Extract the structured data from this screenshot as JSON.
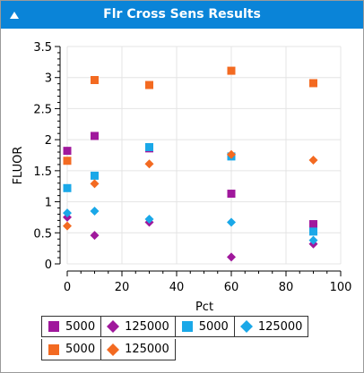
{
  "window": {
    "title": "Flr Cross Sens Results",
    "collapse_icon": "triangle-up-icon",
    "titlebar_color": "#0a84d8"
  },
  "chart_data": {
    "type": "scatter",
    "title": "",
    "xlabel": "Pct",
    "ylabel": "FLUOR",
    "xlim": [
      0,
      100
    ],
    "ylim": [
      0,
      3.5
    ],
    "xticks": [
      "0",
      "20",
      "40",
      "60",
      "80",
      "100"
    ],
    "yticks": [
      "0",
      "0.5",
      "1",
      "1.5",
      "2",
      "2.5",
      "3",
      "3.5"
    ],
    "grid": true,
    "legend_position": "bottom",
    "series": [
      {
        "name": "5000",
        "marker": "square",
        "color": "#a0189c",
        "points": [
          [
            0,
            1.82
          ],
          [
            10,
            2.06
          ],
          [
            30,
            1.86
          ],
          [
            60,
            1.13
          ],
          [
            90,
            0.64
          ]
        ]
      },
      {
        "name": "125000",
        "marker": "diamond",
        "color": "#a0189c",
        "points": [
          [
            0,
            0.75
          ],
          [
            10,
            0.46
          ],
          [
            30,
            0.67
          ],
          [
            60,
            0.11
          ],
          [
            90,
            0.32
          ]
        ]
      },
      {
        "name": "5000",
        "marker": "square",
        "color": "#1aa8e8",
        "points": [
          [
            0,
            1.22
          ],
          [
            10,
            1.42
          ],
          [
            30,
            1.88
          ],
          [
            60,
            1.73
          ],
          [
            90,
            0.52
          ]
        ]
      },
      {
        "name": "125000",
        "marker": "diamond",
        "color": "#1aa8e8",
        "points": [
          [
            0,
            0.82
          ],
          [
            10,
            0.85
          ],
          [
            30,
            0.72
          ],
          [
            60,
            0.67
          ],
          [
            90,
            0.38
          ]
        ]
      },
      {
        "name": "5000",
        "marker": "square",
        "color": "#f36a21",
        "points": [
          [
            0,
            1.66
          ],
          [
            10,
            2.96
          ],
          [
            30,
            2.88
          ],
          [
            60,
            3.11
          ],
          [
            90,
            2.91
          ]
        ]
      },
      {
        "name": "125000",
        "marker": "diamond",
        "color": "#f36a21",
        "points": [
          [
            0,
            0.61
          ],
          [
            10,
            1.29
          ],
          [
            30,
            1.61
          ],
          [
            60,
            1.76
          ],
          [
            90,
            1.67
          ]
        ]
      }
    ]
  }
}
